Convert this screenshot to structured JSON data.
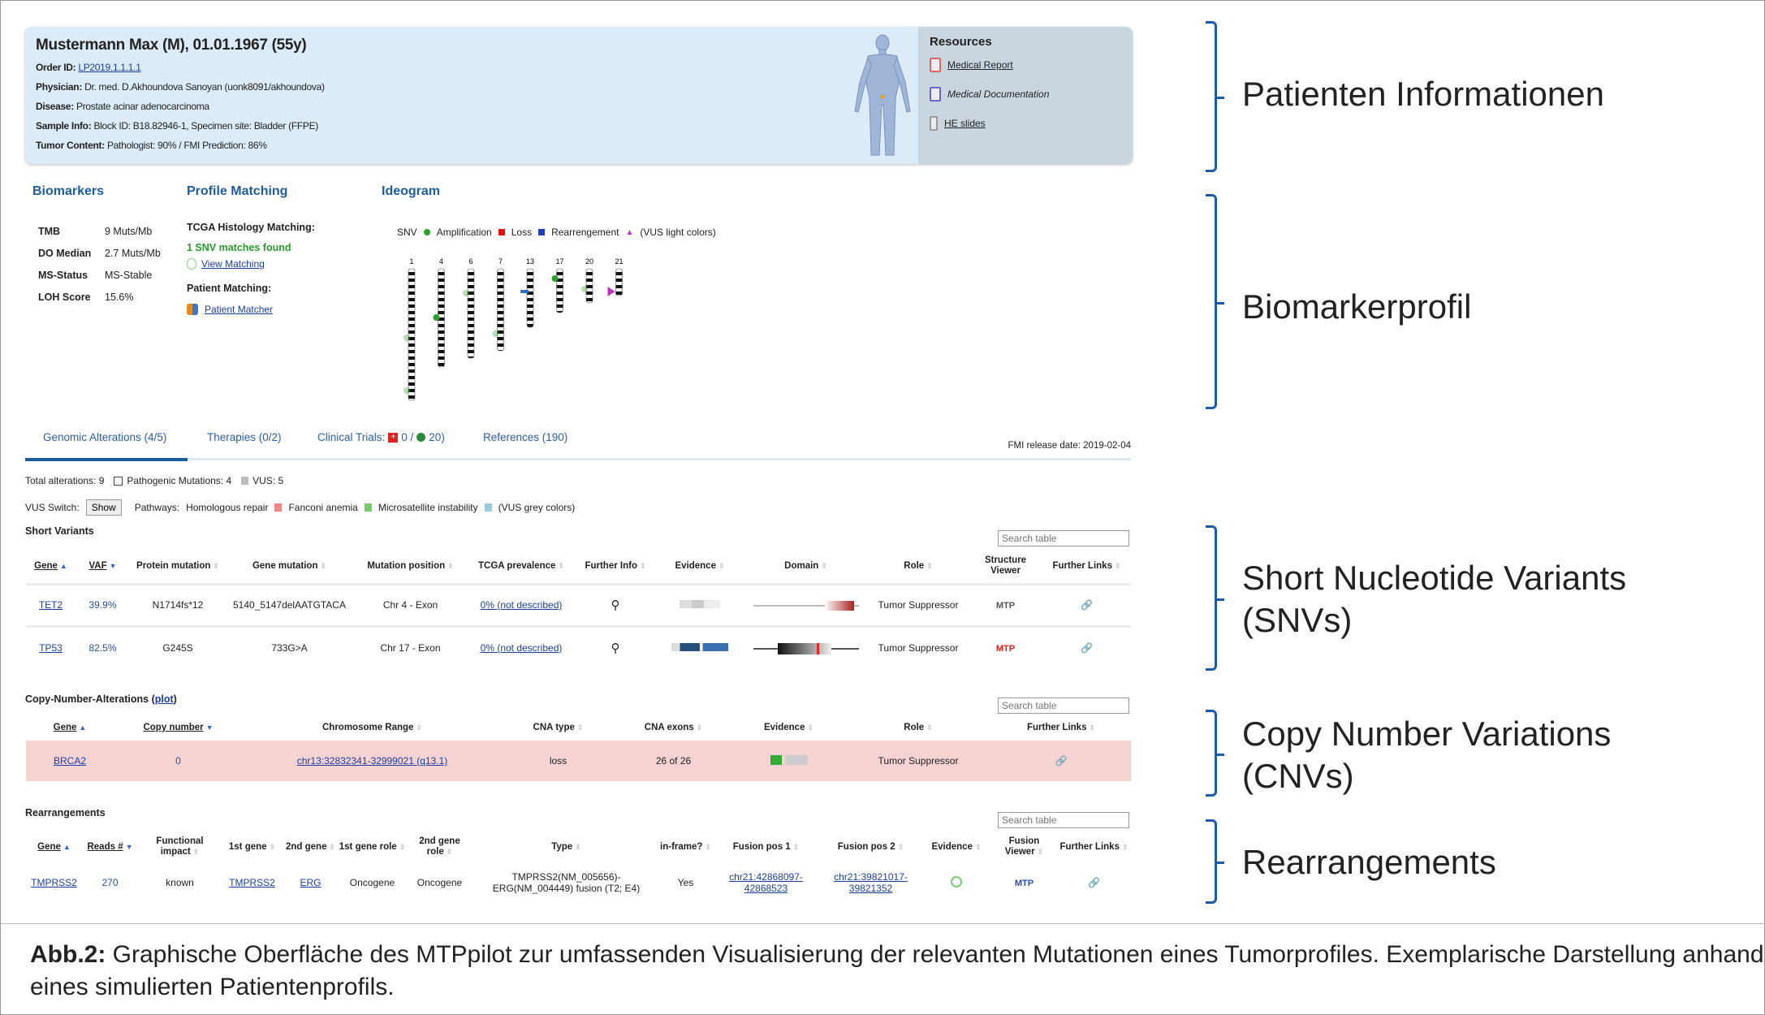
{
  "patient": {
    "name": "Mustermann Max (M), 01.01.1967 (55y)",
    "fields": [
      {
        "label": "Order ID:",
        "value": "LP2019.1.1.1.1",
        "link": true
      },
      {
        "label": "Physician:",
        "value": "Dr. med. D.Akhoundova Sanoyan (uonk8091/akhoundova)"
      },
      {
        "label": "Disease:",
        "value": "Prostate acinar adenocarcinoma"
      },
      {
        "label": "Sample Info:",
        "value": "Block ID: B18.82946-1, Specimen site: Bladder (FFPE)"
      },
      {
        "label": "Tumor Content:",
        "value": "Pathologist: 90% / FMI Prediction: 86%"
      }
    ]
  },
  "resources": {
    "title": "Resources",
    "items": [
      "Medical Report",
      "Medical Documentation",
      "HE slides"
    ]
  },
  "biomarkers": {
    "title": "Biomarkers",
    "rows": [
      {
        "k": "TMB",
        "v": "9 Muts/Mb"
      },
      {
        "k": "DO Median",
        "v": "2.7 Muts/Mb"
      },
      {
        "k": "MS-Status",
        "v": "MS-Stable"
      },
      {
        "k": "LOH Score",
        "v": "15.6%"
      }
    ]
  },
  "profile": {
    "title": "Profile Matching",
    "tcga_label": "TCGA Histology Matching:",
    "matches": "1 SNV matches found",
    "view": "View Matching",
    "patient_label": "Patient Matching:",
    "patient_link": "Patient Matcher"
  },
  "ideogram": {
    "title": "Ideogram",
    "legend": [
      "SNV",
      "Amplification",
      "Loss",
      "Rearrengement",
      "(VUS light colors)"
    ],
    "chromosomes": [
      "1",
      "4",
      "6",
      "7",
      "13",
      "17",
      "20",
      "21"
    ],
    "colors": {
      "snv": "#2ca02c",
      "amp": "#e01010",
      "loss": "#1f3fbf",
      "rearr": "#c030c0"
    }
  },
  "tabs": [
    {
      "label": "Genomic Alterations (4/5)"
    },
    {
      "label": "Therapies (0/2)"
    },
    {
      "label": "Clinical Trials:"
    },
    {
      "label": "0 /"
    },
    {
      "label": "20)"
    },
    {
      "label": "References (190)"
    }
  ],
  "release": "FMI release date: 2019-02-04",
  "summary": {
    "total": "Total alterations: 9",
    "patho": "Pathogenic Mutations: 4",
    "vus": "VUS: 5",
    "vus_switch": "VUS Switch:",
    "show": "Show",
    "pathways": "Pathways:",
    "p1": "Homologous repair",
    "p2": "Fanconi anemia",
    "p3": "Microsatellite instability",
    "p4": "(VUS grey colors)"
  },
  "search_placeholder": "Search table",
  "snv": {
    "title": "Short Variants",
    "headers": [
      "Gene",
      "VAF",
      "Protein mutation",
      "Gene mutation",
      "Mutation position",
      "TCGA prevalence",
      "Further Info",
      "Evidence",
      "Domain",
      "Role",
      "Structure Viewer",
      "Further Links"
    ],
    "rows": [
      {
        "gene": "TET2",
        "vaf": "39.9%",
        "protein": "N1714fs*12",
        "gmut": "5140_5147delAATGTACA",
        "pos": "Chr 4 - Exon",
        "tcga": "0% (not described)",
        "role": "Tumor Suppressor",
        "mtp": "MTP"
      },
      {
        "gene": "TP53",
        "vaf": "82.5%",
        "protein": "G245S",
        "gmut": "733G>A",
        "pos": "Chr 17 - Exon",
        "tcga": "0% (not described)",
        "role": "Tumor Suppressor",
        "mtp": "MTP"
      }
    ]
  },
  "cna": {
    "title": "Copy-Number-Alterations (",
    "plot": "plot",
    "close": ")",
    "headers": [
      "Gene",
      "Copy number",
      "Chromosome Range",
      "CNA type",
      "CNA exons",
      "Evidence",
      "Role",
      "Further Links"
    ],
    "rows": [
      {
        "gene": "BRCA2",
        "copy": "0",
        "range": "chr13:32832341-32999021 (q13.1)",
        "type": "loss",
        "exons": "26 of 26",
        "role": "Tumor Suppressor"
      }
    ],
    "row_color": "#f6d3d3"
  },
  "rearr": {
    "title": "Rearrangements",
    "headers": [
      "Gene",
      "Reads #",
      "Functional impact",
      "1st gene",
      "2nd gene",
      "1st gene role",
      "2nd gene role",
      "Type",
      "in-frame?",
      "Fusion pos 1",
      "Fusion pos 2",
      "Evidence",
      "Fusion Viewer",
      "Further Links"
    ],
    "rows": [
      {
        "gene": "TMPRSS2",
        "reads": "270",
        "impact": "known",
        "g1": "TMPRSS2",
        "g2": "ERG",
        "r1": "Oncogene",
        "r2": "Oncogene",
        "type": "TMPRSS2(NM_005656)-ERG(NM_004449) fusion (T2; E4)",
        "inframe": "Yes",
        "fp1": "chr21:42868097-42868523",
        "fp2": "chr21:39821017-39821352",
        "mtp": "MTP"
      }
    ]
  },
  "labels": [
    "Patienten Informationen",
    "Biomarkerprofil",
    "Short Nucleotide Variants (SNVs)",
    "Copy Number Variations (CNVs)",
    "Rearrangements"
  ],
  "caption": {
    "bold": "Abb.2:",
    "text": " Graphische Oberfläche des MTPpilot zur umfassenden Visualisierung der relevanten Mutationen eines Tumorprofiles. Exemplarische Darstellung anhand eines simulierten Patientenprofils."
  }
}
